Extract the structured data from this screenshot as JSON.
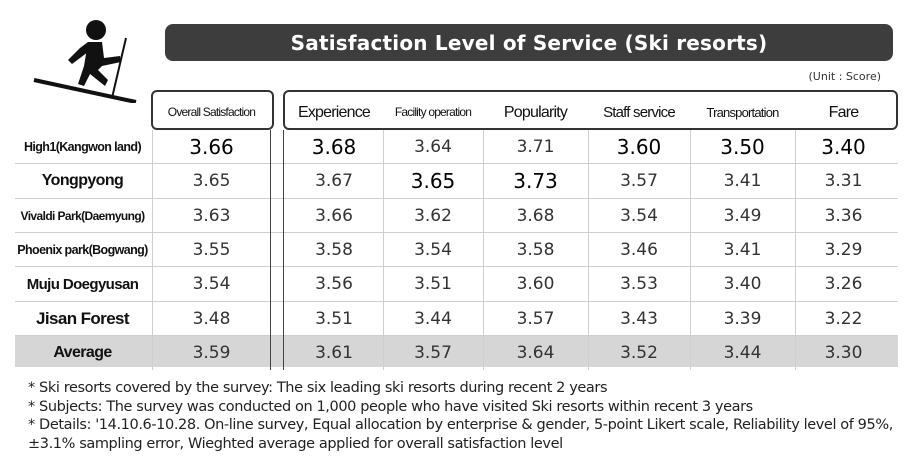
{
  "title": "Satisfaction Level of Service (Ski resorts)",
  "unit": "(Unit : Score)",
  "columns": [
    {
      "key": "overall",
      "label": "Overall Satisfaction"
    },
    {
      "key": "experience",
      "label": "Experience"
    },
    {
      "key": "facility",
      "label": "Facility operation"
    },
    {
      "key": "popularity",
      "label": "Popularity"
    },
    {
      "key": "staff",
      "label": "Staff service"
    },
    {
      "key": "transportation",
      "label": "Transportation"
    },
    {
      "key": "fare",
      "label": "Fare"
    }
  ],
  "rows": [
    {
      "name": "High1(Kangwon land)",
      "values": [
        "3.66",
        "3.68",
        "3.64",
        "3.71",
        "3.60",
        "3.50",
        "3.40"
      ],
      "highlight": [
        true,
        true,
        false,
        false,
        true,
        true,
        true
      ]
    },
    {
      "name": "Yongpyong",
      "values": [
        "3.65",
        "3.67",
        "3.65",
        "3.73",
        "3.57",
        "3.41",
        "3.31"
      ],
      "highlight": [
        false,
        false,
        true,
        true,
        false,
        false,
        false
      ]
    },
    {
      "name": "Vivaldi Park(Daemyung)",
      "values": [
        "3.63",
        "3.66",
        "3.62",
        "3.68",
        "3.54",
        "3.49",
        "3.36"
      ],
      "highlight": [
        false,
        false,
        false,
        false,
        false,
        false,
        false
      ]
    },
    {
      "name": "Phoenix park(Bogwang)",
      "values": [
        "3.55",
        "3.58",
        "3.54",
        "3.58",
        "3.46",
        "3.41",
        "3.29"
      ],
      "highlight": [
        false,
        false,
        false,
        false,
        false,
        false,
        false
      ]
    },
    {
      "name": "Muju Doegyusan",
      "values": [
        "3.54",
        "3.56",
        "3.51",
        "3.60",
        "3.53",
        "3.40",
        "3.26"
      ],
      "highlight": [
        false,
        false,
        false,
        false,
        false,
        false,
        false
      ]
    },
    {
      "name": "Jisan Forest",
      "values": [
        "3.48",
        "3.51",
        "3.44",
        "3.57",
        "3.43",
        "3.39",
        "3.22"
      ],
      "highlight": [
        false,
        false,
        false,
        false,
        false,
        false,
        false
      ]
    },
    {
      "name": "Average",
      "values": [
        "3.59",
        "3.61",
        "3.57",
        "3.64",
        "3.52",
        "3.44",
        "3.30"
      ],
      "highlight": [
        false,
        false,
        false,
        false,
        false,
        false,
        false
      ]
    }
  ],
  "notes": [
    "* Ski resorts covered by the survey:  The six leading ski resorts during recent 2 years",
    "* Subjects: The survey was conducted on 1,000 people who have visited Ski resorts within recent 3 years",
    "* Details: '14.10.6-10.28. On-line survey, Equal allocation by enterprise & gender, 5-point Likert scale, Reliability level of 95%,",
    "±3.1% sampling error, Wieghted average applied for overall satisfaction level"
  ]
}
